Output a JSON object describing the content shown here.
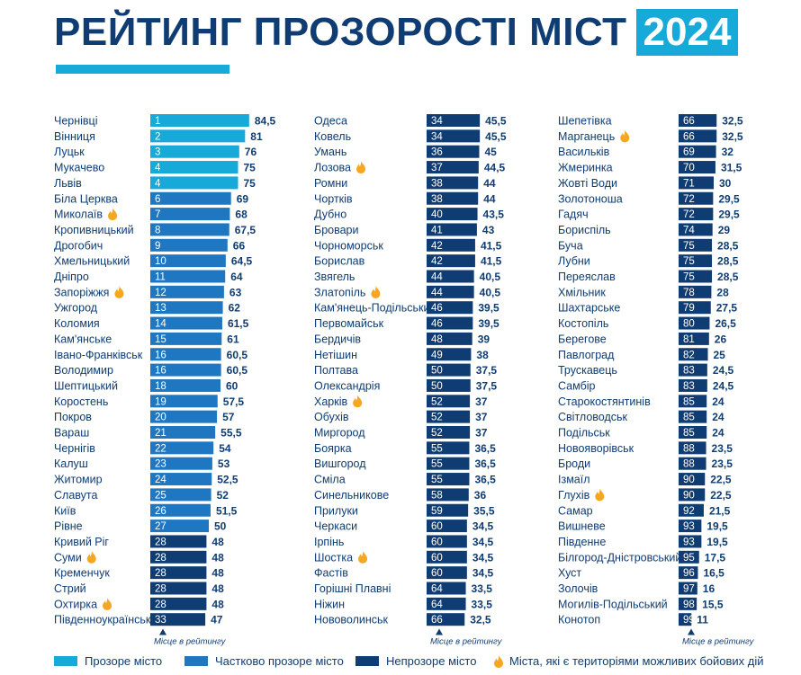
{
  "title": "РЕЙТИНГ ПРОЗОРОСТІ МІСТ",
  "year": "2024",
  "colors": {
    "transparent": "#17a9d7",
    "partial": "#1f77c2",
    "opaque": "#0f3c72",
    "text": "#0f3c72",
    "fire": "#f5a623"
  },
  "legend": {
    "transparent": "Прозоре місто",
    "partial": "Частково прозоре місто",
    "opaque": "Непрозоре місто",
    "combat": "Міста, які є територіями можливих бойових дій"
  },
  "axis_note": "Місце в рейтингу",
  "chart_data": {
    "type": "bar",
    "title": "РЕЙТИНГ ПРОЗОРОСТІ МІСТ 2024",
    "columns": [
      [
        {
          "city": "Чернівці",
          "rank": 1,
          "score": "84,5",
          "value": 84.5,
          "status": "transparent",
          "combat": false
        },
        {
          "city": "Вінниця",
          "rank": 2,
          "score": "81",
          "value": 81,
          "status": "transparent",
          "combat": false
        },
        {
          "city": "Луцьк",
          "rank": 3,
          "score": "76",
          "value": 76,
          "status": "transparent",
          "combat": false
        },
        {
          "city": "Мукачево",
          "rank": 4,
          "score": "75",
          "value": 75,
          "status": "transparent",
          "combat": false
        },
        {
          "city": "Львів",
          "rank": 4,
          "score": "75",
          "value": 75,
          "status": "transparent",
          "combat": false
        },
        {
          "city": "Біла Церква",
          "rank": 6,
          "score": "69",
          "value": 69,
          "status": "partial",
          "combat": false
        },
        {
          "city": "Миколаїв",
          "rank": 7,
          "score": "68",
          "value": 68,
          "status": "partial",
          "combat": true
        },
        {
          "city": "Кропивницький",
          "rank": 8,
          "score": "67,5",
          "value": 67.5,
          "status": "partial",
          "combat": false
        },
        {
          "city": "Дрогобич",
          "rank": 9,
          "score": "66",
          "value": 66,
          "status": "partial",
          "combat": false
        },
        {
          "city": "Хмельницький",
          "rank": 10,
          "score": "64,5",
          "value": 64.5,
          "status": "partial",
          "combat": false
        },
        {
          "city": "Дніпро",
          "rank": 11,
          "score": "64",
          "value": 64,
          "status": "partial",
          "combat": false
        },
        {
          "city": "Запоріжжя",
          "rank": 12,
          "score": "63",
          "value": 63,
          "status": "partial",
          "combat": true
        },
        {
          "city": "Ужгород",
          "rank": 13,
          "score": "62",
          "value": 62,
          "status": "partial",
          "combat": false
        },
        {
          "city": "Коломия",
          "rank": 14,
          "score": "61,5",
          "value": 61.5,
          "status": "partial",
          "combat": false
        },
        {
          "city": "Кам'янське",
          "rank": 15,
          "score": "61",
          "value": 61,
          "status": "partial",
          "combat": false
        },
        {
          "city": "Івано-Франківськ",
          "rank": 16,
          "score": "60,5",
          "value": 60.5,
          "status": "partial",
          "combat": false
        },
        {
          "city": "Володимир",
          "rank": 16,
          "score": "60,5",
          "value": 60.5,
          "status": "partial",
          "combat": false
        },
        {
          "city": "Шептицький",
          "rank": 18,
          "score": "60",
          "value": 60,
          "status": "partial",
          "combat": false
        },
        {
          "city": "Коростень",
          "rank": 19,
          "score": "57,5",
          "value": 57.5,
          "status": "partial",
          "combat": false
        },
        {
          "city": "Покров",
          "rank": 20,
          "score": "57",
          "value": 57,
          "status": "partial",
          "combat": false
        },
        {
          "city": "Вараш",
          "rank": 21,
          "score": "55,5",
          "value": 55.5,
          "status": "partial",
          "combat": false
        },
        {
          "city": "Чернігів",
          "rank": 22,
          "score": "54",
          "value": 54,
          "status": "partial",
          "combat": false
        },
        {
          "city": "Калуш",
          "rank": 23,
          "score": "53",
          "value": 53,
          "status": "partial",
          "combat": false
        },
        {
          "city": "Житомир",
          "rank": 24,
          "score": "52,5",
          "value": 52.5,
          "status": "partial",
          "combat": false
        },
        {
          "city": "Славута",
          "rank": 25,
          "score": "52",
          "value": 52,
          "status": "partial",
          "combat": false
        },
        {
          "city": "Київ",
          "rank": 26,
          "score": "51,5",
          "value": 51.5,
          "status": "partial",
          "combat": false
        },
        {
          "city": "Рівне",
          "rank": 27,
          "score": "50",
          "value": 50,
          "status": "partial",
          "combat": false
        },
        {
          "city": "Кривий Ріг",
          "rank": 28,
          "score": "48",
          "value": 48,
          "status": "opaque",
          "combat": false
        },
        {
          "city": "Суми",
          "rank": 28,
          "score": "48",
          "value": 48,
          "status": "opaque",
          "combat": true
        },
        {
          "city": "Кременчук",
          "rank": 28,
          "score": "48",
          "value": 48,
          "status": "opaque",
          "combat": false
        },
        {
          "city": "Стрий",
          "rank": 28,
          "score": "48",
          "value": 48,
          "status": "opaque",
          "combat": false
        },
        {
          "city": "Охтирка",
          "rank": 28,
          "score": "48",
          "value": 48,
          "status": "opaque",
          "combat": true
        },
        {
          "city": "Південноукраїнськ",
          "rank": 33,
          "score": "47",
          "value": 47,
          "status": "opaque",
          "combat": false
        }
      ],
      [
        {
          "city": "Одеса",
          "rank": 34,
          "score": "45,5",
          "value": 45.5,
          "status": "opaque",
          "combat": false
        },
        {
          "city": "Ковель",
          "rank": 34,
          "score": "45,5",
          "value": 45.5,
          "status": "opaque",
          "combat": false
        },
        {
          "city": "Умань",
          "rank": 36,
          "score": "45",
          "value": 45,
          "status": "opaque",
          "combat": false
        },
        {
          "city": "Лозова",
          "rank": 37,
          "score": "44,5",
          "value": 44.5,
          "status": "opaque",
          "combat": true
        },
        {
          "city": "Ромни",
          "rank": 38,
          "score": "44",
          "value": 44,
          "status": "opaque",
          "combat": false
        },
        {
          "city": "Чортків",
          "rank": 38,
          "score": "44",
          "value": 44,
          "status": "opaque",
          "combat": false
        },
        {
          "city": "Дубно",
          "rank": 40,
          "score": "43,5",
          "value": 43.5,
          "status": "opaque",
          "combat": false
        },
        {
          "city": "Бровари",
          "rank": 41,
          "score": "43",
          "value": 43,
          "status": "opaque",
          "combat": false
        },
        {
          "city": "Чорноморськ",
          "rank": 42,
          "score": "41,5",
          "value": 41.5,
          "status": "opaque",
          "combat": false
        },
        {
          "city": "Борислав",
          "rank": 42,
          "score": "41,5",
          "value": 41.5,
          "status": "opaque",
          "combat": false
        },
        {
          "city": "Звягель",
          "rank": 44,
          "score": "40,5",
          "value": 40.5,
          "status": "opaque",
          "combat": false
        },
        {
          "city": "Златопіль",
          "rank": 44,
          "score": "40,5",
          "value": 40.5,
          "status": "opaque",
          "combat": true
        },
        {
          "city": "Кам'янець-Подільський",
          "rank": 46,
          "score": "39,5",
          "value": 39.5,
          "status": "opaque",
          "combat": false
        },
        {
          "city": "Первомайськ",
          "rank": 46,
          "score": "39,5",
          "value": 39.5,
          "status": "opaque",
          "combat": false
        },
        {
          "city": "Бердичів",
          "rank": 48,
          "score": "39",
          "value": 39,
          "status": "opaque",
          "combat": false
        },
        {
          "city": "Нетішин",
          "rank": 49,
          "score": "38",
          "value": 38,
          "status": "opaque",
          "combat": false
        },
        {
          "city": "Полтава",
          "rank": 50,
          "score": "37,5",
          "value": 37.5,
          "status": "opaque",
          "combat": false
        },
        {
          "city": "Олександрія",
          "rank": 50,
          "score": "37,5",
          "value": 37.5,
          "status": "opaque",
          "combat": false
        },
        {
          "city": "Харків",
          "rank": 52,
          "score": "37",
          "value": 37,
          "status": "opaque",
          "combat": true
        },
        {
          "city": "Обухів",
          "rank": 52,
          "score": "37",
          "value": 37,
          "status": "opaque",
          "combat": false
        },
        {
          "city": "Миргород",
          "rank": 52,
          "score": "37",
          "value": 37,
          "status": "opaque",
          "combat": false
        },
        {
          "city": "Боярка",
          "rank": 55,
          "score": "36,5",
          "value": 36.5,
          "status": "opaque",
          "combat": false
        },
        {
          "city": "Вишгород",
          "rank": 55,
          "score": "36,5",
          "value": 36.5,
          "status": "opaque",
          "combat": false
        },
        {
          "city": "Сміла",
          "rank": 55,
          "score": "36,5",
          "value": 36.5,
          "status": "opaque",
          "combat": false
        },
        {
          "city": "Синельникове",
          "rank": 58,
          "score": "36",
          "value": 36,
          "status": "opaque",
          "combat": false
        },
        {
          "city": "Прилуки",
          "rank": 59,
          "score": "35,5",
          "value": 35.5,
          "status": "opaque",
          "combat": false
        },
        {
          "city": "Черкаси",
          "rank": 60,
          "score": "34,5",
          "value": 34.5,
          "status": "opaque",
          "combat": false
        },
        {
          "city": "Ірпінь",
          "rank": 60,
          "score": "34,5",
          "value": 34.5,
          "status": "opaque",
          "combat": false
        },
        {
          "city": "Шостка",
          "rank": 60,
          "score": "34,5",
          "value": 34.5,
          "status": "opaque",
          "combat": true
        },
        {
          "city": "Фастів",
          "rank": 60,
          "score": "34,5",
          "value": 34.5,
          "status": "opaque",
          "combat": false
        },
        {
          "city": "Горішні Плавні",
          "rank": 64,
          "score": "33,5",
          "value": 33.5,
          "status": "opaque",
          "combat": false
        },
        {
          "city": "Ніжин",
          "rank": 64,
          "score": "33,5",
          "value": 33.5,
          "status": "opaque",
          "combat": false
        },
        {
          "city": "Нововолинськ",
          "rank": 66,
          "score": "32,5",
          "value": 32.5,
          "status": "opaque",
          "combat": false
        }
      ],
      [
        {
          "city": "Шепетівка",
          "rank": 66,
          "score": "32,5",
          "value": 32.5,
          "status": "opaque",
          "combat": false
        },
        {
          "city": "Марганець",
          "rank": 66,
          "score": "32,5",
          "value": 32.5,
          "status": "opaque",
          "combat": true
        },
        {
          "city": "Васильків",
          "rank": 69,
          "score": "32",
          "value": 32,
          "status": "opaque",
          "combat": false
        },
        {
          "city": "Жмеринка",
          "rank": 70,
          "score": "31,5",
          "value": 31.5,
          "status": "opaque",
          "combat": false
        },
        {
          "city": "Жовті Води",
          "rank": 71,
          "score": "30",
          "value": 30,
          "status": "opaque",
          "combat": false
        },
        {
          "city": "Золотоноша",
          "rank": 72,
          "score": "29,5",
          "value": 29.5,
          "status": "opaque",
          "combat": false
        },
        {
          "city": "Гадяч",
          "rank": 72,
          "score": "29,5",
          "value": 29.5,
          "status": "opaque",
          "combat": false
        },
        {
          "city": "Бориспіль",
          "rank": 74,
          "score": "29",
          "value": 29,
          "status": "opaque",
          "combat": false
        },
        {
          "city": "Буча",
          "rank": 75,
          "score": "28,5",
          "value": 28.5,
          "status": "opaque",
          "combat": false
        },
        {
          "city": "Лубни",
          "rank": 75,
          "score": "28,5",
          "value": 28.5,
          "status": "opaque",
          "combat": false
        },
        {
          "city": "Переяслав",
          "rank": 75,
          "score": "28,5",
          "value": 28.5,
          "status": "opaque",
          "combat": false
        },
        {
          "city": "Хмільник",
          "rank": 78,
          "score": "28",
          "value": 28,
          "status": "opaque",
          "combat": false
        },
        {
          "city": "Шахтарське",
          "rank": 79,
          "score": "27,5",
          "value": 27.5,
          "status": "opaque",
          "combat": false
        },
        {
          "city": "Костопіль",
          "rank": 80,
          "score": "26,5",
          "value": 26.5,
          "status": "opaque",
          "combat": false
        },
        {
          "city": "Берегове",
          "rank": 81,
          "score": "26",
          "value": 26,
          "status": "opaque",
          "combat": false
        },
        {
          "city": "Павлоград",
          "rank": 82,
          "score": "25",
          "value": 25,
          "status": "opaque",
          "combat": false
        },
        {
          "city": "Трускавець",
          "rank": 83,
          "score": "24,5",
          "value": 24.5,
          "status": "opaque",
          "combat": false
        },
        {
          "city": "Самбір",
          "rank": 83,
          "score": "24,5",
          "value": 24.5,
          "status": "opaque",
          "combat": false
        },
        {
          "city": "Старокостянтинів",
          "rank": 85,
          "score": "24",
          "value": 24,
          "status": "opaque",
          "combat": false
        },
        {
          "city": "Світловодськ",
          "rank": 85,
          "score": "24",
          "value": 24,
          "status": "opaque",
          "combat": false
        },
        {
          "city": "Подільськ",
          "rank": 85,
          "score": "24",
          "value": 24,
          "status": "opaque",
          "combat": false
        },
        {
          "city": "Новояворівськ",
          "rank": 88,
          "score": "23,5",
          "value": 23.5,
          "status": "opaque",
          "combat": false
        },
        {
          "city": "Броди",
          "rank": 88,
          "score": "23,5",
          "value": 23.5,
          "status": "opaque",
          "combat": false
        },
        {
          "city": "Ізмаїл",
          "rank": 90,
          "score": "22,5",
          "value": 22.5,
          "status": "opaque",
          "combat": false
        },
        {
          "city": "Глухів",
          "rank": 90,
          "score": "22,5",
          "value": 22.5,
          "status": "opaque",
          "combat": true
        },
        {
          "city": "Самар",
          "rank": 92,
          "score": "21,5",
          "value": 21.5,
          "status": "opaque",
          "combat": false
        },
        {
          "city": "Вишневе",
          "rank": 93,
          "score": "19,5",
          "value": 19.5,
          "status": "opaque",
          "combat": false
        },
        {
          "city": "Південне",
          "rank": 93,
          "score": "19,5",
          "value": 19.5,
          "status": "opaque",
          "combat": false
        },
        {
          "city": "Білгород-Дністровський",
          "rank": 95,
          "score": "17,5",
          "value": 17.5,
          "status": "opaque",
          "combat": false
        },
        {
          "city": "Хуст",
          "rank": 96,
          "score": "16,5",
          "value": 16.5,
          "status": "opaque",
          "combat": false
        },
        {
          "city": "Золочів",
          "rank": 97,
          "score": "16",
          "value": 16,
          "status": "opaque",
          "combat": false
        },
        {
          "city": "Могилів-Подільський",
          "rank": 98,
          "score": "15,5",
          "value": 15.5,
          "status": "opaque",
          "combat": false
        },
        {
          "city": "Конотоп",
          "rank": 99,
          "score": "11",
          "value": 11,
          "status": "opaque",
          "combat": false
        }
      ]
    ]
  }
}
